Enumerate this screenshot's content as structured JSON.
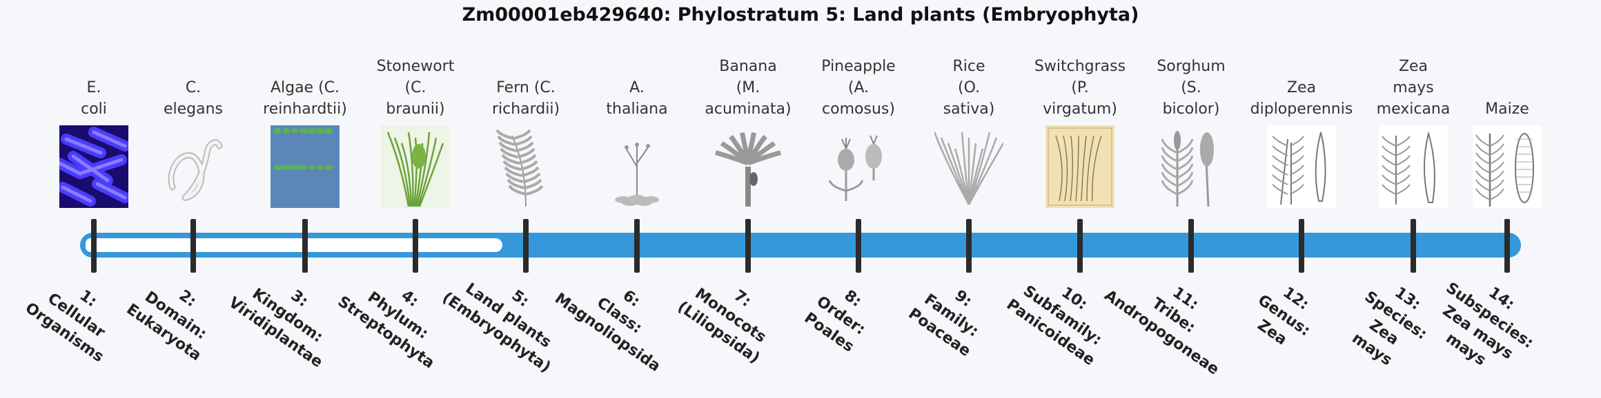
{
  "title": "Zm00001eb429640: Phylostratum 5: Land plants (Embryophyta)",
  "colors": {
    "bar": "#3498db",
    "ticks": "#2b2b2b",
    "background": "#f5f7fa"
  },
  "current_stratum": 5,
  "strata": [
    {
      "organism": [
        "E.",
        "coli"
      ],
      "rank": [
        "1:",
        "Cellular",
        "Organisms"
      ],
      "icon": "bacteria-icon"
    },
    {
      "organism": [
        "C.",
        "elegans"
      ],
      "rank": [
        "2:",
        "Domain:",
        "Eukaryota"
      ],
      "icon": "worm-icon"
    },
    {
      "organism": [
        "Algae (C.",
        "reinhardtii)"
      ],
      "rank": [
        "3:",
        "Kingdom:",
        "Viridiplantae"
      ],
      "icon": "algae-icon"
    },
    {
      "organism": [
        "Stonewort",
        "(C.",
        "braunii)"
      ],
      "rank": [
        "4:",
        "Phylum:",
        "Streptophyta"
      ],
      "icon": "stonewort-icon"
    },
    {
      "organism": [
        "Fern (C.",
        "richardii)"
      ],
      "rank": [
        "5:",
        "Land plants",
        "(Embryophyta)"
      ],
      "icon": "fern-icon"
    },
    {
      "organism": [
        "A.",
        "thaliana"
      ],
      "rank": [
        "6:",
        "Class:",
        "Magnoliopsida"
      ],
      "icon": "arabidopsis-icon"
    },
    {
      "organism": [
        "Banana",
        "(M.",
        "acuminata)"
      ],
      "rank": [
        "7:",
        "Monocots",
        "(Liliopsida)"
      ],
      "icon": "banana-plant-icon"
    },
    {
      "organism": [
        "Pineapple",
        "(A.",
        "comosus)"
      ],
      "rank": [
        "8:",
        "Order:",
        "Poales"
      ],
      "icon": "pineapple-icon"
    },
    {
      "organism": [
        "Rice",
        "(O.",
        "sativa)"
      ],
      "rank": [
        "9:",
        "Family:",
        "Poaceae"
      ],
      "icon": "rice-icon"
    },
    {
      "organism": [
        "Switchgrass",
        "(P.",
        "virgatum)"
      ],
      "rank": [
        "10:",
        "Subfamily:",
        "Panicoideae"
      ],
      "icon": "switchgrass-icon"
    },
    {
      "organism": [
        "Sorghum",
        "(S.",
        "bicolor)"
      ],
      "rank": [
        "11:",
        "Tribe:",
        "Andropogoneae"
      ],
      "icon": "sorghum-icon"
    },
    {
      "organism": [
        "Zea",
        "diploperennis"
      ],
      "rank": [
        "12:",
        "Genus:",
        "Zea"
      ],
      "icon": "zea-diploperennis-icon"
    },
    {
      "organism": [
        "Zea",
        "mays",
        "mexicana"
      ],
      "rank": [
        "13:",
        "Species:",
        "Zea",
        "mays"
      ],
      "icon": "zea-mexicana-icon"
    },
    {
      "organism": [
        "Maize"
      ],
      "rank": [
        "14:",
        "Subspecies:",
        "Zea mays",
        "mays"
      ],
      "icon": "maize-icon"
    }
  ]
}
